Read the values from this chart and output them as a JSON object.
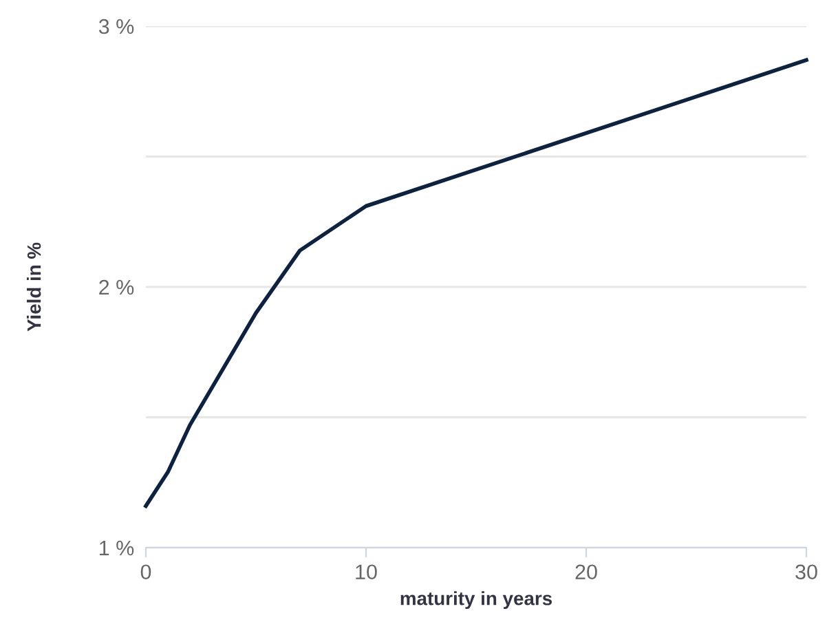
{
  "chart_data": {
    "type": "line",
    "xlabel": "maturity in years",
    "ylabel": "Yield in %",
    "x": [
      0,
      1,
      2,
      5,
      7,
      10,
      30
    ],
    "series": [
      {
        "color": "#0d2240",
        "values": [
          1.16,
          1.29,
          1.47,
          1.9,
          2.14,
          2.31,
          2.87
        ]
      }
    ],
    "xlim": [
      0,
      30
    ],
    "xticks": [
      0,
      10,
      20,
      30
    ],
    "ylim": [
      1,
      3
    ],
    "yticks": [
      {
        "value": 1,
        "label": "1 %"
      },
      {
        "value": 1.5,
        "label": null
      },
      {
        "value": 2,
        "label": "2 %"
      },
      {
        "value": 2.5,
        "label": null
      },
      {
        "value": 3,
        "label": "3 %"
      }
    ],
    "grid": "y",
    "marker": "none",
    "line_style": "solid"
  }
}
